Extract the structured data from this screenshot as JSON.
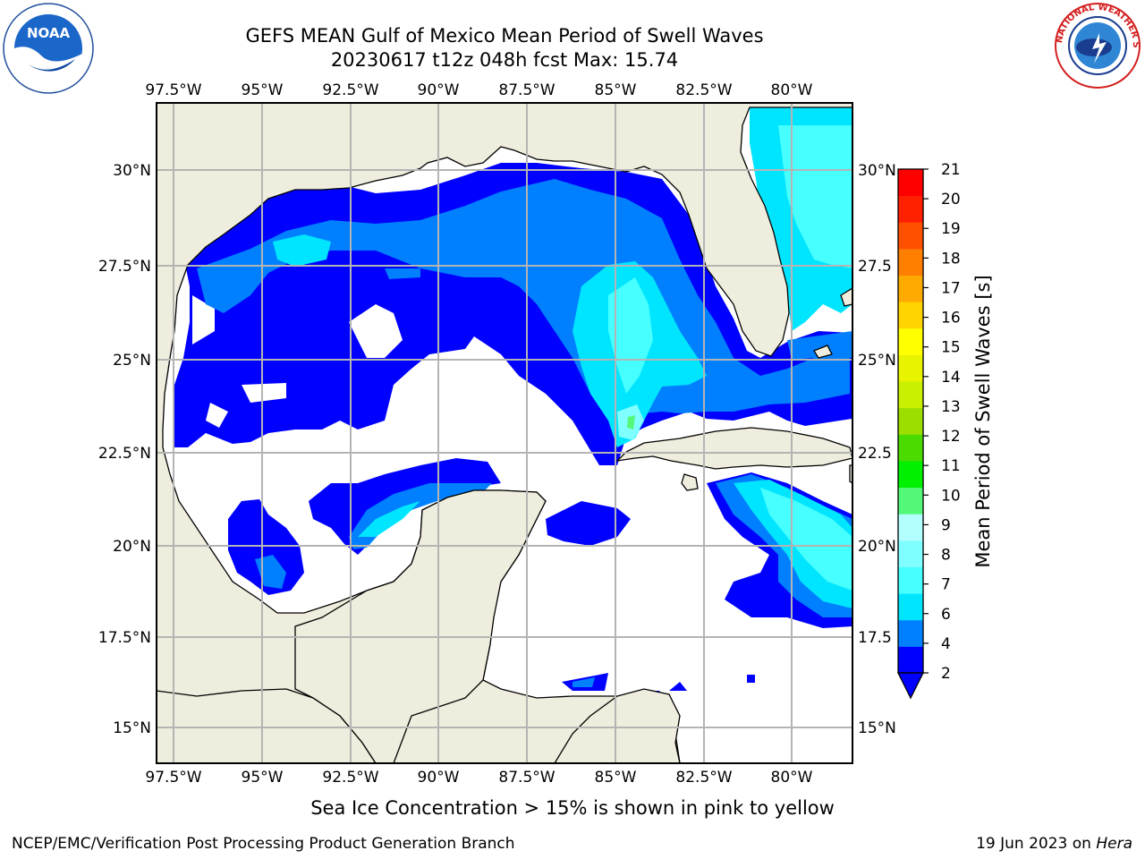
{
  "titles": {
    "line1": "GEFS MEAN Gulf of Mexico Mean Period of Swell Waves",
    "line2": "20230617 t12z 048h fcst   Max: 15.74"
  },
  "map": {
    "lon_ticks": [
      "97.5°W",
      "95°W",
      "92.5°W",
      "90°W",
      "87.5°W",
      "85°W",
      "82.5°W",
      "80°W"
    ],
    "lat_ticks_left": [
      "30°N",
      "27.5°N",
      "25°N",
      "22.5°N",
      "20°N",
      "17.5°N",
      "15°N"
    ],
    "lat_ticks_right": [
      "30°N",
      "27.5",
      "25°N",
      "22.5",
      "20°N",
      "17.5",
      "15°N"
    ],
    "colors": {
      "land": "#efeddd",
      "grid": "#b4b4b4",
      "no_data": "#ffffff"
    }
  },
  "colorbar": {
    "label": "Mean Period of Swell Waves [s]",
    "ticks": [
      "2",
      "4",
      "6",
      "7",
      "8",
      "9",
      "10",
      "11",
      "12",
      "13",
      "14",
      "15",
      "16",
      "17",
      "18",
      "19",
      "20",
      "21"
    ],
    "colors": [
      "#0000ff",
      "#0080ff",
      "#00e5ff",
      "#46ffff",
      "#7fffff",
      "#b3ffff",
      "#54f878",
      "#00f000",
      "#4cdb00",
      "#9bde00",
      "#c8f000",
      "#e8f300",
      "#ffff00",
      "#ffd400",
      "#ffaa00",
      "#ff7f00",
      "#ff5000",
      "#ff2000",
      "#ff0000"
    ]
  },
  "footer": {
    "caption": "Sea Ice Concentration > 15% is shown in pink to yellow",
    "credit": "NCEP/EMC/Verification Post Processing Product Generation Branch",
    "date_prefix": "19 Jun 2023 on ",
    "date_host": "Hera"
  },
  "logos": {
    "noaa_text": "NOAA",
    "nws_ring_text": "NATIONAL WEATHER SERVICE"
  }
}
